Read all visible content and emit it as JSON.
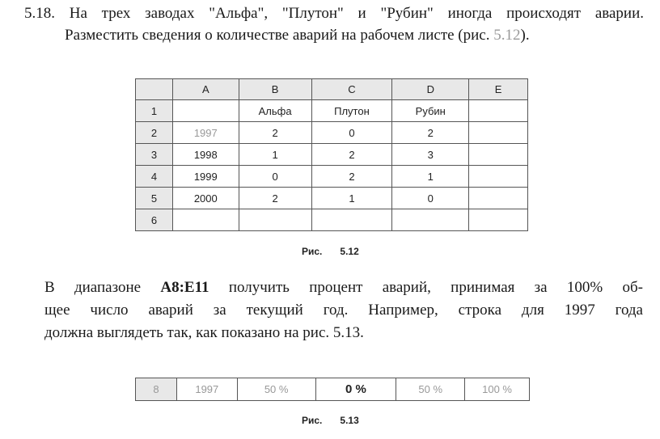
{
  "task": {
    "number": "5.18.",
    "line1": "На трех заводах \"Альфа\", \"Плутон\" и \"Рубин\" иногда происходят аварии.",
    "line2_text": "Разместить сведения о количестве аварий на рабочем листе (рис.",
    "line2_ref": "5.12",
    "line2_end": ")."
  },
  "figure_512": {
    "columns": [
      "",
      "A",
      "B",
      "C",
      "D",
      "E"
    ],
    "rows": [
      [
        "1",
        "",
        "Альфа",
        "Плутон",
        "Рубин",
        ""
      ],
      [
        "2",
        "1997",
        "2",
        "0",
        "2",
        ""
      ],
      [
        "3",
        "1998",
        "1",
        "2",
        "3",
        ""
      ],
      [
        "4",
        "1999",
        "0",
        "2",
        "1",
        ""
      ],
      [
        "5",
        "2000",
        "2",
        "1",
        "0",
        ""
      ],
      [
        "6",
        "",
        "",
        "",
        "",
        ""
      ]
    ],
    "caption_label": "Рис.",
    "caption_number": "5.12"
  },
  "paragraph": {
    "l1_a": "В диапазоне",
    "l1_range": "A8:E11",
    "l1_b": "получить процент аварий, принимая за 100% об-",
    "l2": "щее число аварий за текущий год. Например, строка для 1997 года",
    "l3": "должна выглядеть так, как показано на рис. 5.13."
  },
  "figure_513": {
    "row": [
      "8",
      "1997",
      "50 %",
      "0 %",
      "50 %",
      "100 %"
    ],
    "caption_label": "Рис.",
    "caption_number": "5.13"
  }
}
